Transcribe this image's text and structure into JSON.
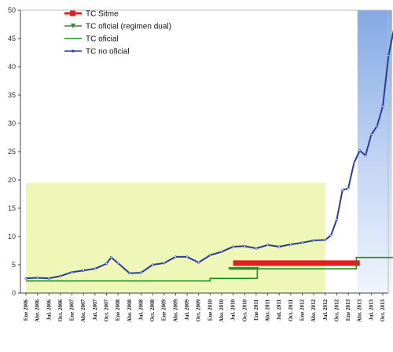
{
  "chart_data": {
    "type": "line",
    "title": "",
    "xlabel": "",
    "ylabel": "",
    "ylim": [
      0,
      50
    ],
    "y_ticks": [
      "0",
      "5",
      "10",
      "15",
      "20",
      "25",
      "30",
      "35",
      "40",
      "45",
      "50"
    ],
    "grid": false,
    "legend_position": "top-left",
    "x_tick_labels": [
      "Ene 2006",
      "Abr. 2006",
      "Jul. 2006",
      "Oct. 2006",
      "Ene 2007",
      "Abr. 2007",
      "Jul. 2007",
      "Oct. 2007",
      "Ene 2008",
      "Abr. 2008",
      "Jul. 2008",
      "Oct. 2008",
      "Ene 2009",
      "Abr. 2009",
      "Jul. 2009",
      "Oct. 2009",
      "Ene 2010",
      "Abr. 2010",
      "Jul. 2010",
      "Oct. 2010",
      "Ene 2011",
      "Abr. 2011",
      "Jul. 2011",
      "Oct. 2011",
      "Ene 2012",
      "Abr. 2012",
      "Jul. 2012",
      "Oct. 2012",
      "Ene 2013",
      "Abr. 2013",
      "Jul. 2013",
      "Oct. 2013"
    ],
    "shaded_regions": [
      {
        "x_start": 0,
        "x_end": 26,
        "y_top": 19.5,
        "color": "#eef7b8"
      },
      {
        "x_start": 28.8,
        "x_end": 31.8,
        "y_top": 50,
        "color": "#8fb3e6"
      }
    ],
    "series": [
      {
        "name": "TC Sitme",
        "color": "#e02020",
        "style": "thick-bar",
        "points": [
          [
            18,
            5.3
          ],
          [
            29,
            5.3
          ]
        ]
      },
      {
        "name": "TC oficial  (regimen dual)",
        "color": "#2e8b2e",
        "style": "marker-line",
        "points": [
          [
            17.7,
            4.3
          ],
          [
            20.1,
            4.3
          ]
        ]
      },
      {
        "name": "TC oficial",
        "color": "#1f8f1f",
        "style": "step",
        "points": [
          [
            0,
            2.15
          ],
          [
            16,
            2.15
          ],
          [
            16,
            2.6
          ],
          [
            20.1,
            2.6
          ],
          [
            20.1,
            4.3
          ],
          [
            28.7,
            4.3
          ],
          [
            28.7,
            6.3
          ],
          [
            32,
            6.3
          ]
        ]
      },
      {
        "name": "TC no oficial",
        "color": "#283c9c",
        "style": "line",
        "points": [
          [
            0,
            2.6
          ],
          [
            1,
            2.7
          ],
          [
            2,
            2.6
          ],
          [
            3,
            3.0
          ],
          [
            4,
            3.7
          ],
          [
            5,
            4.0
          ],
          [
            6,
            4.3
          ],
          [
            7,
            5.2
          ],
          [
            7.4,
            6.3
          ],
          [
            8,
            5.3
          ],
          [
            9,
            3.5
          ],
          [
            10,
            3.6
          ],
          [
            11,
            5.0
          ],
          [
            12,
            5.3
          ],
          [
            13,
            6.4
          ],
          [
            14,
            6.4
          ],
          [
            15,
            5.4
          ],
          [
            16,
            6.7
          ],
          [
            17,
            7.3
          ],
          [
            18,
            8.2
          ],
          [
            19,
            8.3
          ],
          [
            20,
            7.9
          ],
          [
            21,
            8.5
          ],
          [
            22,
            8.2
          ],
          [
            23,
            8.6
          ],
          [
            24,
            8.9
          ],
          [
            25,
            9.3
          ],
          [
            26,
            9.4
          ],
          [
            26.5,
            10.2
          ],
          [
            27,
            13.0
          ],
          [
            27.5,
            18.2
          ],
          [
            28,
            18.5
          ],
          [
            28.5,
            23.0
          ],
          [
            29,
            25.2
          ],
          [
            29.5,
            24.3
          ],
          [
            30,
            28.0
          ],
          [
            30.5,
            29.5
          ],
          [
            31,
            33.0
          ],
          [
            31.5,
            42.0
          ],
          [
            32,
            47.0
          ]
        ]
      }
    ]
  }
}
